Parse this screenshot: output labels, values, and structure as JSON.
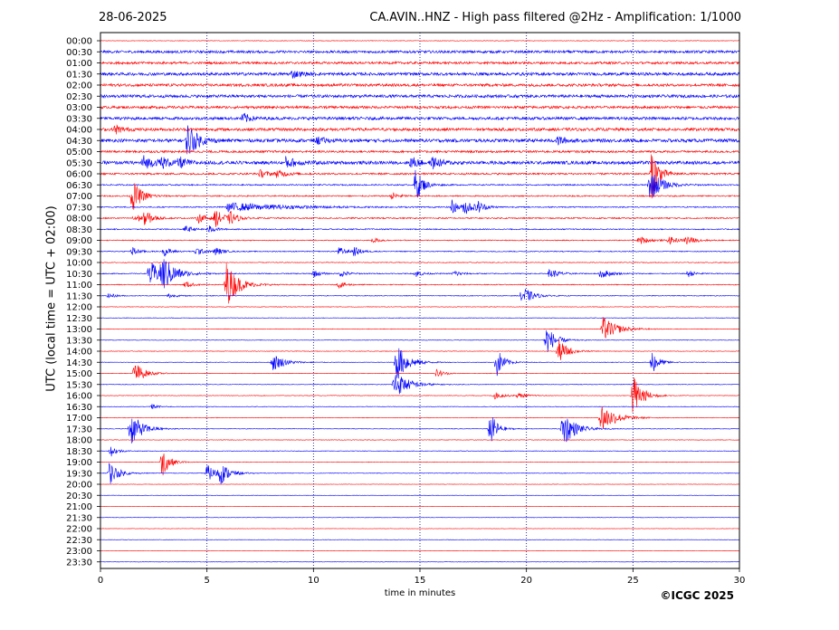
{
  "header": {
    "date": "28-06-2025",
    "title": "CA.AVIN..HNZ - High pass filtered @2Hz - Amplification: 1/1000"
  },
  "footer": {
    "copyright": "©ICGC 2025"
  },
  "colors": {
    "red_trace": "#ff0000",
    "blue_trace": "#0000ff",
    "grid": "#000080",
    "axis": "#000000"
  },
  "chart_data": {
    "type": "line",
    "title": "CA.AVIN..HNZ - High pass filtered @2Hz - Amplification: 1/1000",
    "xlabel": "time in minutes",
    "ylabel": "UTC (local time = UTC + 02:00)",
    "xlim": [
      0,
      30
    ],
    "x_ticks": [
      0,
      5,
      10,
      15,
      20,
      25,
      30
    ],
    "grid": "vertical dotted lines at each x tick",
    "row_labels": [
      "00:00",
      "00:30",
      "01:00",
      "01:30",
      "02:00",
      "02:30",
      "03:00",
      "03:30",
      "04:00",
      "04:30",
      "05:00",
      "05:30",
      "06:00",
      "06:30",
      "07:00",
      "07:30",
      "08:00",
      "08:30",
      "09:00",
      "09:30",
      "10:00",
      "10:30",
      "11:00",
      "11:30",
      "12:00",
      "12:30",
      "13:00",
      "13:30",
      "14:00",
      "14:30",
      "15:00",
      "15:30",
      "16:00",
      "16:30",
      "17:00",
      "17:30",
      "18:00",
      "18:30",
      "19:00",
      "19:30",
      "20:00",
      "20:30",
      "21:00",
      "21:30",
      "22:00",
      "22:30",
      "23:00",
      "23:30"
    ],
    "row_colors": "alternating red (even rows) and blue (odd rows)",
    "row_noise": [
      0.3,
      1.4,
      1.3,
      1.6,
      1.5,
      1.6,
      1.4,
      1.6,
      1.6,
      1.8,
      1.2,
      1.8,
      1.0,
      0.7,
      0.7,
      0.6,
      0.7,
      0.6,
      0.5,
      0.5,
      0.4,
      0.5,
      0.5,
      0.4,
      0.3,
      0.3,
      0.3,
      0.3,
      0.3,
      0.3,
      0.3,
      0.3,
      0.3,
      0.3,
      0.3,
      0.3,
      0.3,
      0.3,
      0.3,
      0.3,
      0.2,
      0.2,
      0.2,
      0.2,
      0.2,
      0.2,
      0.2,
      0.2
    ],
    "events": [
      {
        "row": 8,
        "t": 0.7,
        "amp": 5,
        "dur": 0.3
      },
      {
        "row": 3,
        "t": 9.0,
        "amp": 4,
        "dur": 0.4
      },
      {
        "row": 7,
        "t": 6.7,
        "amp": 6,
        "dur": 0.3
      },
      {
        "row": 9,
        "t": 4.1,
        "amp": 20,
        "dur": 0.4
      },
      {
        "row": 9,
        "t": 10.2,
        "amp": 4,
        "dur": 0.3
      },
      {
        "row": 9,
        "t": 21.5,
        "amp": 5,
        "dur": 0.3
      },
      {
        "row": 11,
        "t": 2.0,
        "amp": 8,
        "dur": 0.4
      },
      {
        "row": 11,
        "t": 2.8,
        "amp": 7,
        "dur": 0.4
      },
      {
        "row": 11,
        "t": 3.7,
        "amp": 6,
        "dur": 0.3
      },
      {
        "row": 11,
        "t": 8.7,
        "amp": 6,
        "dur": 0.5
      },
      {
        "row": 11,
        "t": 14.6,
        "amp": 7,
        "dur": 0.3
      },
      {
        "row": 11,
        "t": 15.6,
        "amp": 6,
        "dur": 0.4
      },
      {
        "row": 12,
        "t": 7.5,
        "amp": 4,
        "dur": 0.4
      },
      {
        "row": 12,
        "t": 8.3,
        "amp": 4,
        "dur": 0.4
      },
      {
        "row": 12,
        "t": 25.9,
        "amp": 30,
        "dur": 0.3
      },
      {
        "row": 13,
        "t": 14.8,
        "amp": 20,
        "dur": 0.3
      },
      {
        "row": 13,
        "t": 25.8,
        "amp": 18,
        "dur": 0.5
      },
      {
        "row": 14,
        "t": 1.5,
        "amp": 18,
        "dur": 0.4
      },
      {
        "row": 14,
        "t": 13.7,
        "amp": 4,
        "dur": 0.3
      },
      {
        "row": 15,
        "t": 6.0,
        "amp": 5,
        "dur": 2.5
      },
      {
        "row": 15,
        "t": 16.5,
        "amp": 8,
        "dur": 0.3
      },
      {
        "row": 15,
        "t": 17.1,
        "amp": 8,
        "dur": 0.4
      },
      {
        "row": 15,
        "t": 17.7,
        "amp": 6,
        "dur": 0.3
      },
      {
        "row": 16,
        "t": 1.6,
        "amp": 6,
        "dur": 0.3
      },
      {
        "row": 16,
        "t": 2.1,
        "amp": 9,
        "dur": 0.3
      },
      {
        "row": 16,
        "t": 4.6,
        "amp": 5,
        "dur": 0.4
      },
      {
        "row": 16,
        "t": 5.4,
        "amp": 9,
        "dur": 0.4
      },
      {
        "row": 16,
        "t": 6.1,
        "amp": 6,
        "dur": 0.3
      },
      {
        "row": 17,
        "t": 4.0,
        "amp": 4,
        "dur": 0.3
      },
      {
        "row": 17,
        "t": 5.1,
        "amp": 4,
        "dur": 0.3
      },
      {
        "row": 18,
        "t": 12.8,
        "amp": 3,
        "dur": 0.3
      },
      {
        "row": 18,
        "t": 25.3,
        "amp": 5,
        "dur": 0.4
      },
      {
        "row": 18,
        "t": 26.7,
        "amp": 4,
        "dur": 0.4
      },
      {
        "row": 18,
        "t": 27.5,
        "amp": 5,
        "dur": 0.4
      },
      {
        "row": 19,
        "t": 1.5,
        "amp": 5,
        "dur": 0.3
      },
      {
        "row": 19,
        "t": 3.0,
        "amp": 5,
        "dur": 0.3
      },
      {
        "row": 19,
        "t": 4.5,
        "amp": 5,
        "dur": 0.3
      },
      {
        "row": 19,
        "t": 5.4,
        "amp": 5,
        "dur": 0.3
      },
      {
        "row": 19,
        "t": 11.2,
        "amp": 5,
        "dur": 0.3
      },
      {
        "row": 19,
        "t": 11.9,
        "amp": 5,
        "dur": 0.3
      },
      {
        "row": 21,
        "t": 2.3,
        "amp": 14,
        "dur": 0.6
      },
      {
        "row": 21,
        "t": 2.9,
        "amp": 18,
        "dur": 0.5
      },
      {
        "row": 21,
        "t": 10.0,
        "amp": 4,
        "dur": 0.3
      },
      {
        "row": 21,
        "t": 11.3,
        "amp": 4,
        "dur": 0.3
      },
      {
        "row": 21,
        "t": 14.8,
        "amp": 4,
        "dur": 0.3
      },
      {
        "row": 21,
        "t": 16.6,
        "amp": 4,
        "dur": 0.3
      },
      {
        "row": 21,
        "t": 21.1,
        "amp": 6,
        "dur": 0.4
      },
      {
        "row": 21,
        "t": 23.5,
        "amp": 6,
        "dur": 0.4
      },
      {
        "row": 21,
        "t": 27.6,
        "amp": 4,
        "dur": 0.3
      },
      {
        "row": 22,
        "t": 5.9,
        "amp": 26,
        "dur": 0.5
      },
      {
        "row": 22,
        "t": 4.0,
        "amp": 4,
        "dur": 0.3
      },
      {
        "row": 22,
        "t": 11.2,
        "amp": 4,
        "dur": 0.3
      },
      {
        "row": 23,
        "t": 19.8,
        "amp": 12,
        "dur": 0.4
      },
      {
        "row": 23,
        "t": 0.4,
        "amp": 3,
        "dur": 0.3
      },
      {
        "row": 23,
        "t": 3.2,
        "amp": 3,
        "dur": 0.3
      },
      {
        "row": 26,
        "t": 23.6,
        "amp": 14,
        "dur": 0.6
      },
      {
        "row": 27,
        "t": 20.9,
        "amp": 18,
        "dur": 0.4
      },
      {
        "row": 28,
        "t": 21.5,
        "amp": 14,
        "dur": 0.4
      },
      {
        "row": 29,
        "t": 8.1,
        "amp": 10,
        "dur": 0.5
      },
      {
        "row": 29,
        "t": 13.9,
        "amp": 22,
        "dur": 0.5
      },
      {
        "row": 29,
        "t": 18.6,
        "amp": 18,
        "dur": 0.3
      },
      {
        "row": 29,
        "t": 25.9,
        "amp": 14,
        "dur": 0.3
      },
      {
        "row": 30,
        "t": 1.6,
        "amp": 14,
        "dur": 0.4
      },
      {
        "row": 30,
        "t": 15.8,
        "amp": 5,
        "dur": 0.3
      },
      {
        "row": 31,
        "t": 13.8,
        "amp": 16,
        "dur": 0.6
      },
      {
        "row": 32,
        "t": 25.0,
        "amp": 26,
        "dur": 0.4
      },
      {
        "row": 32,
        "t": 18.5,
        "amp": 4,
        "dur": 0.4
      },
      {
        "row": 32,
        "t": 19.6,
        "amp": 3,
        "dur": 0.4
      },
      {
        "row": 33,
        "t": 2.4,
        "amp": 3,
        "dur": 0.3
      },
      {
        "row": 34,
        "t": 23.5,
        "amp": 18,
        "dur": 0.6
      },
      {
        "row": 35,
        "t": 1.4,
        "amp": 20,
        "dur": 0.5
      },
      {
        "row": 35,
        "t": 18.3,
        "amp": 20,
        "dur": 0.3
      },
      {
        "row": 35,
        "t": 21.7,
        "amp": 22,
        "dur": 0.5
      },
      {
        "row": 37,
        "t": 0.5,
        "amp": 6,
        "dur": 0.3
      },
      {
        "row": 38,
        "t": 2.9,
        "amp": 18,
        "dur": 0.3
      },
      {
        "row": 39,
        "t": 0.4,
        "amp": 14,
        "dur": 0.4
      },
      {
        "row": 39,
        "t": 5.0,
        "amp": 10,
        "dur": 0.4
      },
      {
        "row": 39,
        "t": 5.6,
        "amp": 12,
        "dur": 0.4
      }
    ]
  }
}
